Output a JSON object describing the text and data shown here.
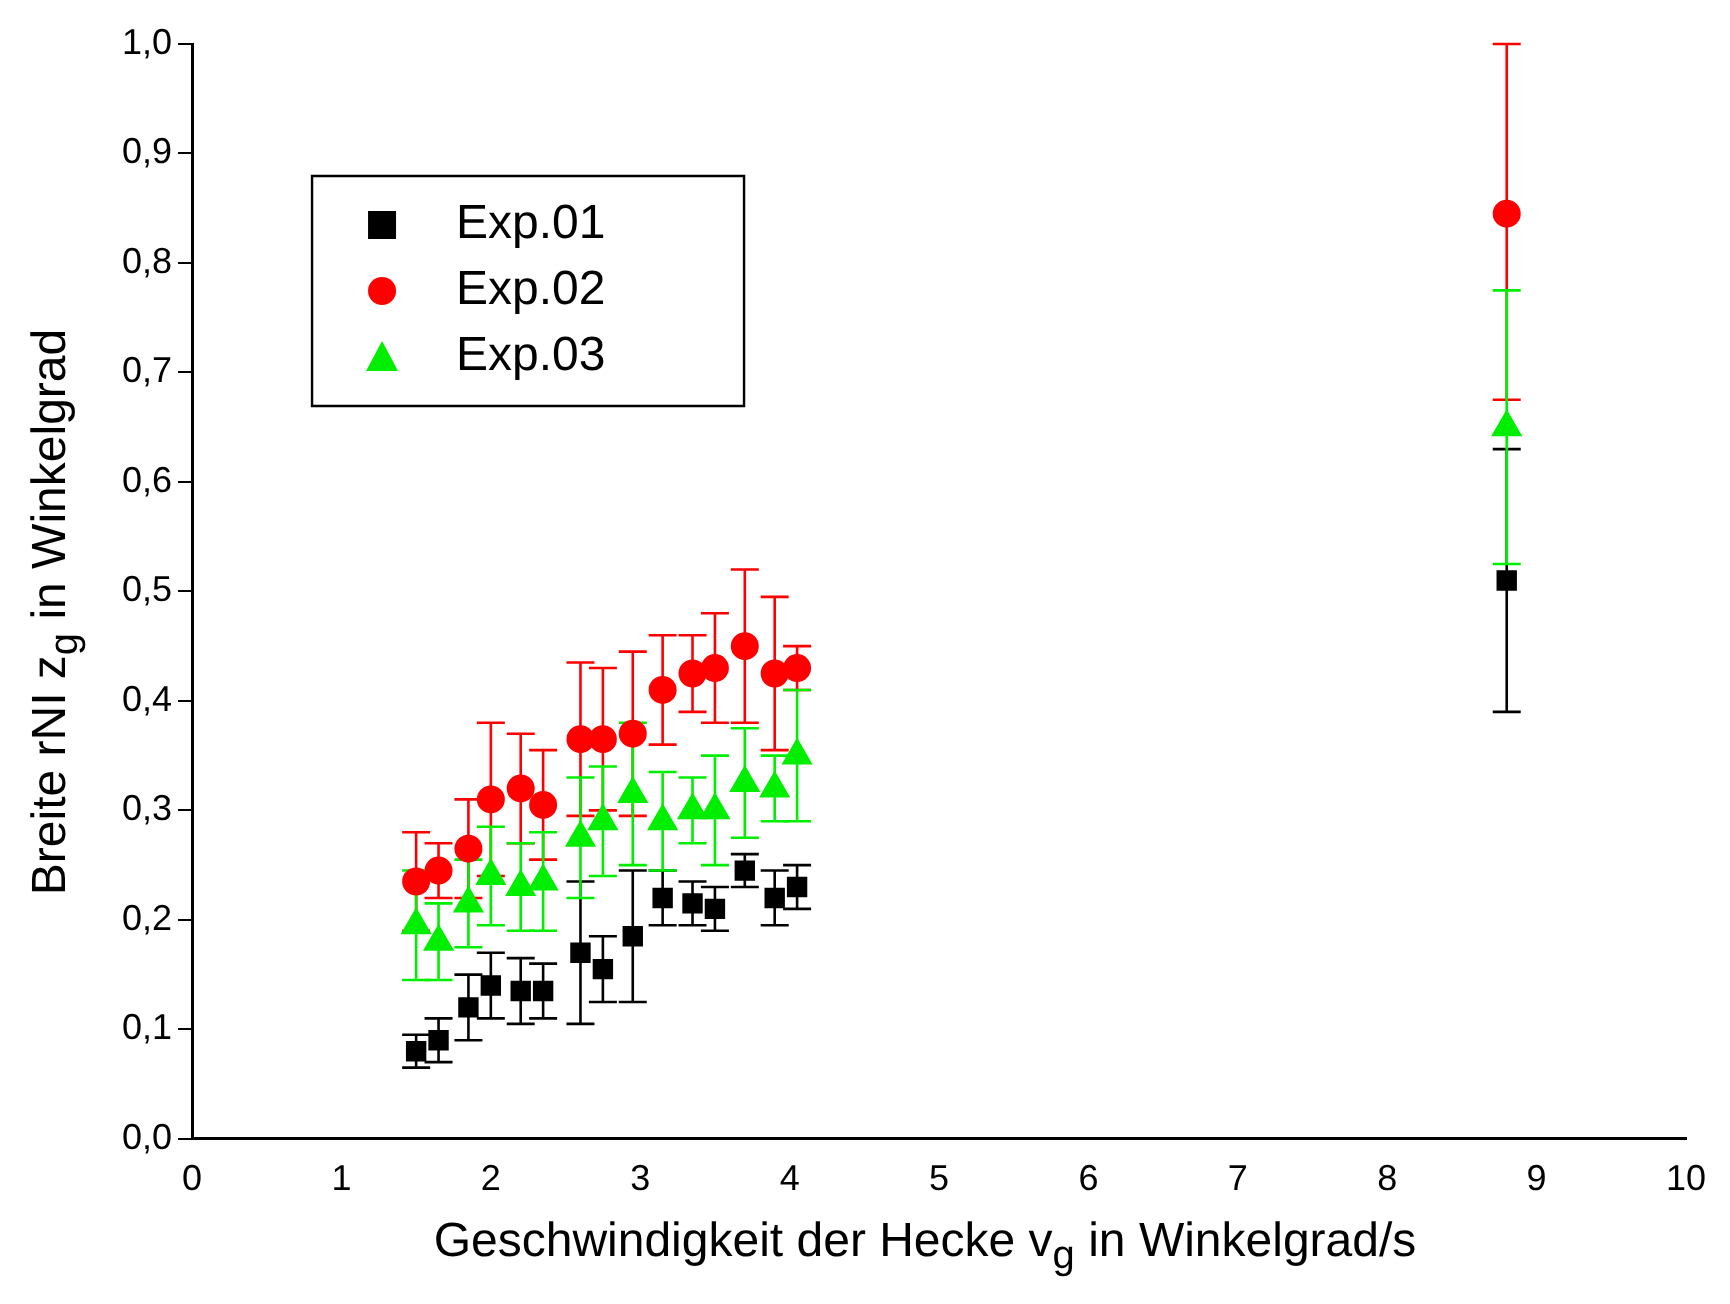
{
  "chart_data": {
    "type": "scatter",
    "xlabel": "Geschwindigkeit der Hecke v$_{g}$ in Winkelgrad/s",
    "ylabel": "Breite rNI z$_{g}$ in Winkelgrad",
    "x": [
      1.5,
      1.65,
      1.85,
      2.0,
      2.2,
      2.35,
      2.6,
      2.75,
      2.95,
      3.15,
      3.35,
      3.5,
      3.7,
      3.9,
      4.05,
      8.8
    ],
    "series": [
      {
        "name": "Exp.01",
        "color": "#000000",
        "marker": "square",
        "values": [
          0.08,
          0.09,
          0.12,
          0.14,
          0.135,
          0.135,
          0.17,
          0.155,
          0.185,
          0.22,
          0.215,
          0.21,
          0.245,
          0.22,
          0.23,
          0.51
        ],
        "errors": [
          0.015,
          0.02,
          0.03,
          0.03,
          0.03,
          0.025,
          0.065,
          0.03,
          0.06,
          0.025,
          0.02,
          0.02,
          0.015,
          0.025,
          0.02,
          0.12
        ]
      },
      {
        "name": "Exp.02",
        "color": "#ff0000",
        "marker": "circle",
        "values": [
          0.235,
          0.245,
          0.265,
          0.31,
          0.32,
          0.305,
          0.365,
          0.365,
          0.37,
          0.41,
          0.425,
          0.43,
          0.45,
          0.425,
          0.43,
          0.845
        ],
        "errors": [
          0.045,
          0.025,
          0.045,
          0.07,
          0.05,
          0.05,
          0.07,
          0.065,
          0.075,
          0.05,
          0.035,
          0.05,
          0.07,
          0.07,
          0.02,
          [
            0.675,
            1.0
          ]
        ]
      },
      {
        "name": "Exp.03",
        "color": "#00ee00",
        "marker": "triangle",
        "values": [
          0.195,
          0.18,
          0.215,
          0.24,
          0.23,
          0.235,
          0.275,
          0.29,
          0.315,
          0.29,
          0.3,
          0.3,
          0.325,
          0.32,
          0.35,
          0.65
        ],
        "errors": [
          0.05,
          0.035,
          0.04,
          0.045,
          0.04,
          0.045,
          0.055,
          0.05,
          0.065,
          0.045,
          0.03,
          0.05,
          0.05,
          0.03,
          0.06,
          0.125
        ]
      }
    ],
    "xlim": [
      0,
      10
    ],
    "xticks": [
      0,
      1,
      2,
      3,
      4,
      5,
      6,
      7,
      8,
      9,
      10
    ],
    "ylim": [
      0,
      1.0
    ],
    "yticks": [
      {
        "value": 0,
        "label": "0,0"
      },
      {
        "value": 0.1,
        "label": "0,1"
      },
      {
        "value": 0.2,
        "label": "0,2"
      },
      {
        "value": 0.3,
        "label": "0,3"
      },
      {
        "value": 0.4,
        "label": "0,4"
      },
      {
        "value": 0.5,
        "label": "0,5"
      },
      {
        "value": 0.6,
        "label": "0,6"
      },
      {
        "value": 0.7,
        "label": "0,7"
      },
      {
        "value": 0.8,
        "label": "0,8"
      },
      {
        "value": 0.9,
        "label": "0,9"
      },
      {
        "value": 1.0,
        "label": "1,0"
      }
    ],
    "grid": false,
    "legend": "top left"
  }
}
